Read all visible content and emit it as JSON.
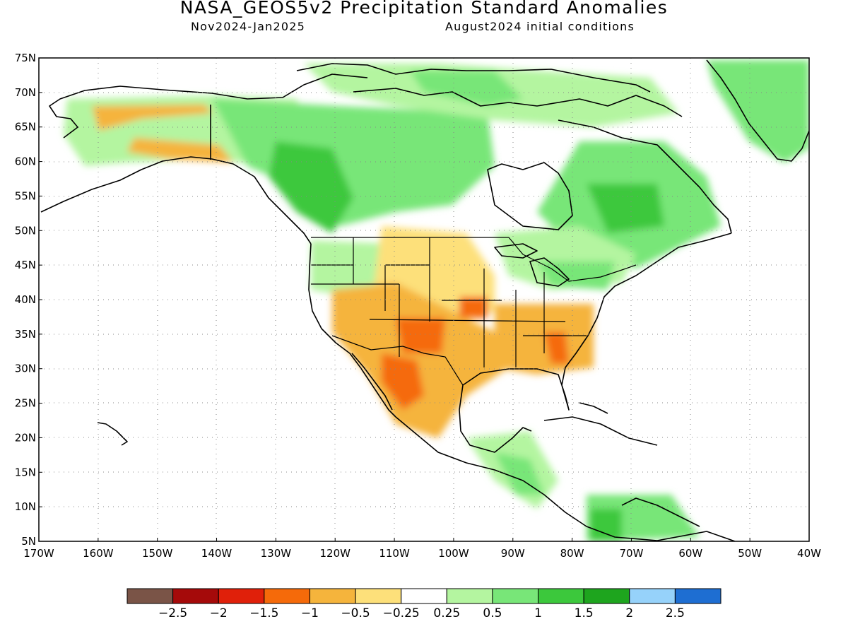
{
  "title": "NASA_GEOS5v2 Precipitation Standard Anomalies",
  "subtitle_left": "Nov2024-Jan2025",
  "subtitle_right": "August2024 initial conditions",
  "map": {
    "lat_labels": [
      "75N",
      "70N",
      "65N",
      "60N",
      "55N",
      "50N",
      "45N",
      "40N",
      "35N",
      "30N",
      "25N",
      "20N",
      "15N",
      "10N",
      "5N"
    ],
    "lon_labels": [
      "170W",
      "160W",
      "150W",
      "140W",
      "130W",
      "120W",
      "110W",
      "100W",
      "90W",
      "80W",
      "70W",
      "60W",
      "50W",
      "40W"
    ],
    "lat_range": [
      5,
      75
    ],
    "lon_range": [
      -170,
      -40
    ],
    "grid": true
  },
  "colorbar": {
    "colors": [
      "#7a5447",
      "#a50a0a",
      "#e0200a",
      "#f56a0a",
      "#f5b43c",
      "#fde07a",
      "#ffffff",
      "#b4f5a0",
      "#78e678",
      "#3cc83c",
      "#1ea51e",
      "#96d2fa",
      "#1e6ed2"
    ],
    "labels": [
      "−2.5",
      "−2",
      "−1.5",
      "−1",
      "−0.5",
      "−0.25",
      "0.25",
      "0.5",
      "1",
      "1.5",
      "2",
      "2.5"
    ]
  }
}
